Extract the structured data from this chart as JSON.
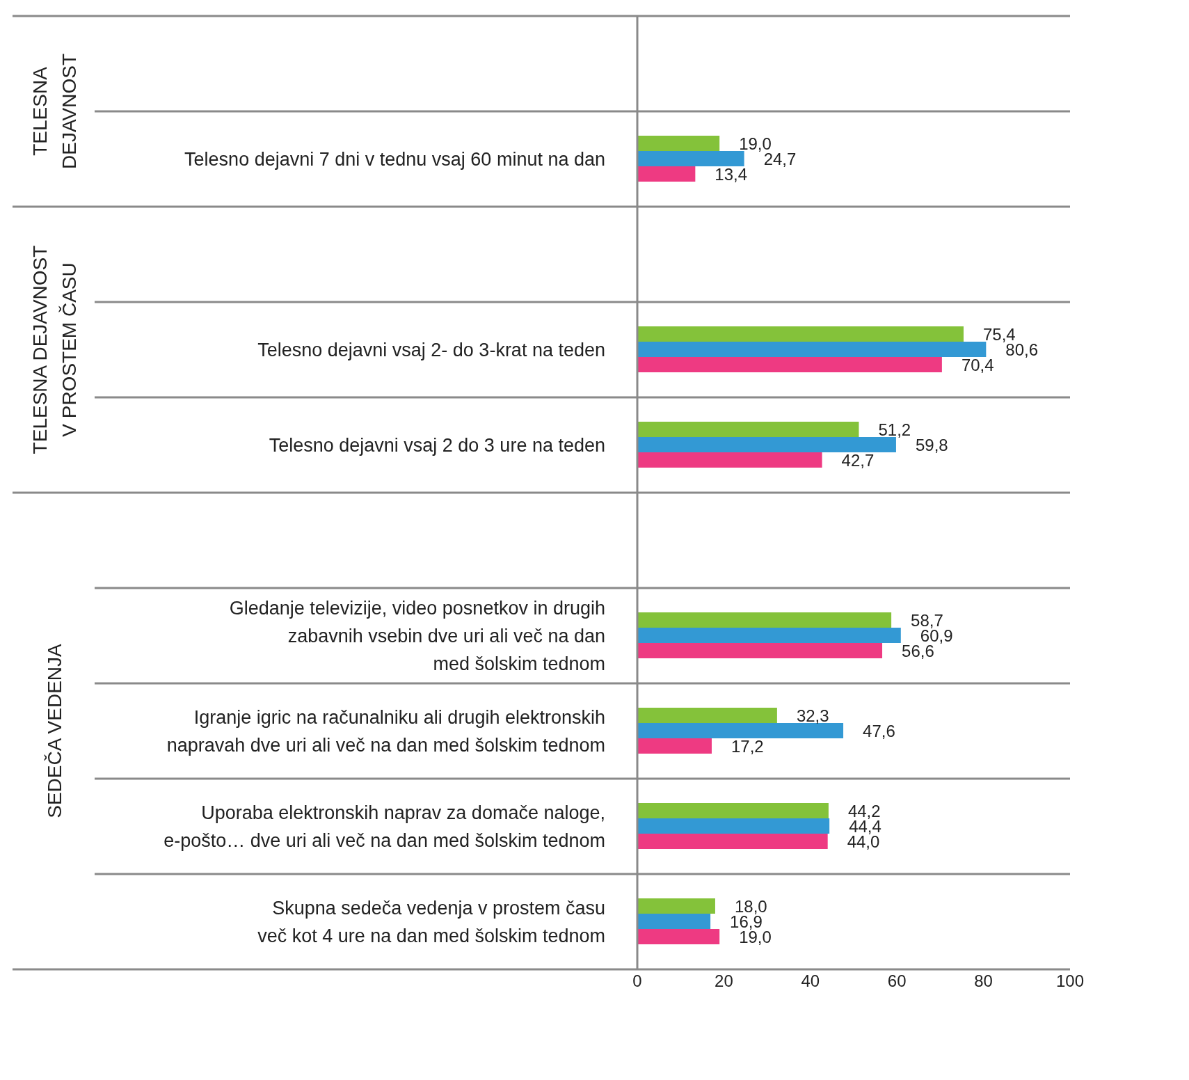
{
  "chart_data": {
    "type": "bar",
    "orientation": "horizontal",
    "categories": [
      null,
      "Telesno dejavni 7 dni v tednu vsaj 60 minut na dan",
      null,
      "Telesno dejavni vsaj 2- do 3-krat na teden",
      "Telesno dejavni vsaj 2 do 3 ure na teden",
      null,
      "Gledanje televizije, video posnetkov in drugih\nzabavnih vsebin dve uri ali več na dan\nmed šolskim tednom",
      "Igranje igric na računalniku ali drugih elektronskih\nnapravah dve uri ali več na dan med šolskim tednom",
      "Uporaba elektronskih naprav za domače naloge,\ne-pošto… dve uri ali več na dan med šolskim tednom",
      "Skupna sedeča vedenja v prostem času\nveč kot 4 ure na dan med šolskim tednom"
    ],
    "series": [
      {
        "color": "#84c23a",
        "values": [
          null,
          19.0,
          null,
          75.4,
          51.2,
          null,
          58.7,
          32.3,
          44.2,
          18.0
        ],
        "value_labels": [
          null,
          "19,0",
          null,
          "75,4",
          "51,2",
          null,
          "58,7",
          "32,3",
          "44,2",
          "18,0"
        ]
      },
      {
        "color": "#3399d4",
        "values": [
          null,
          24.7,
          null,
          80.6,
          59.8,
          null,
          60.9,
          47.6,
          44.4,
          16.9
        ],
        "value_labels": [
          null,
          "24,7",
          null,
          "80,6",
          "59,8",
          null,
          "60,9",
          "47,6",
          "44,4",
          "16,9"
        ]
      },
      {
        "color": "#ee3a82",
        "values": [
          null,
          13.4,
          null,
          70.4,
          42.7,
          null,
          56.6,
          17.2,
          44.0,
          19.0
        ],
        "value_labels": [
          null,
          "13,4",
          null,
          "70,4",
          "42,7",
          null,
          "56,6",
          "17,2",
          "44,0",
          "19,0"
        ]
      }
    ],
    "xlim": [
      0,
      100
    ],
    "xticks": [
      0,
      20,
      40,
      60,
      80,
      100
    ],
    "annotations": [
      "TELESNA\nDEJAVNOST",
      "TELESNA DEJAVNOST\nV PROSTEM ČASU",
      "SEDEČA VEDENJA"
    ]
  }
}
